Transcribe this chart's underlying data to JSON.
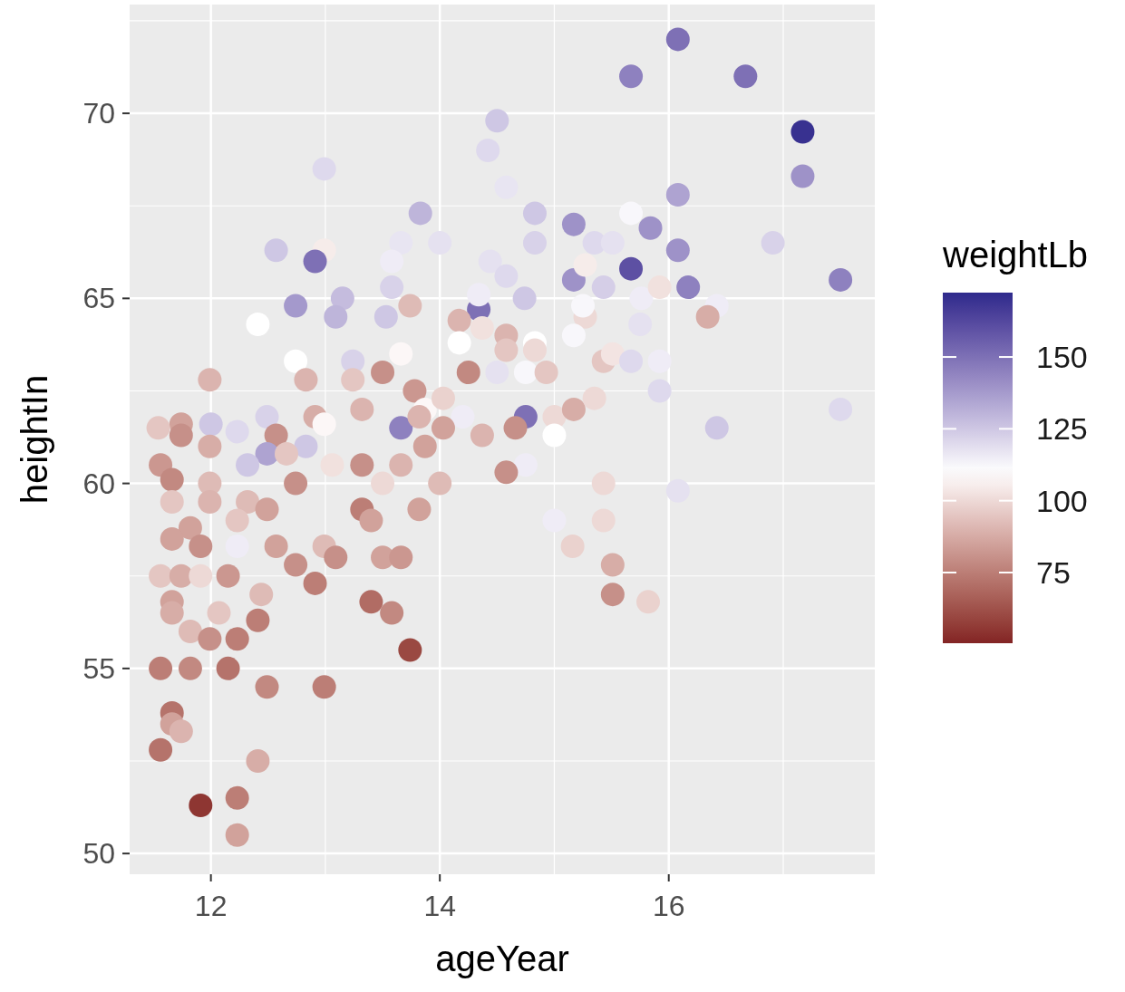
{
  "chart_data": {
    "type": "scatter",
    "xlabel": "ageYear",
    "ylabel": "heightIn",
    "clabel": "weightLb",
    "xlim": [
      11.29,
      17.8
    ],
    "ylim": [
      49.44,
      72.94
    ],
    "xticks": [
      12,
      14,
      16
    ],
    "yticks": [
      50,
      55,
      60,
      65,
      70
    ],
    "clim": [
      50.4,
      172.4
    ],
    "cticks": [
      75,
      100,
      125,
      150
    ],
    "grid": true,
    "marker": "circle",
    "x": [
      16.08,
      15.67,
      16.67,
      17.17,
      17.17,
      14.5,
      14.42,
      12.99,
      14.58,
      16.08,
      13.83,
      14.83,
      15.17,
      15.67,
      15.84,
      16.91,
      14.0,
      13.66,
      12.57,
      12.99,
      12.91,
      13.58,
      16.08,
      15.67,
      14.83,
      15.35,
      15.51,
      14.44,
      14.58,
      15.17,
      15.27,
      16.17,
      17.5,
      14.34,
      14.34,
      13.15,
      12.74,
      13.09,
      13.58,
      13.74,
      14.74,
      15.43,
      15.76,
      15.92,
      16.42,
      16.34,
      15.27,
      15.25,
      12.41,
      13.53,
      14.17,
      14.37,
      14.58,
      14.83,
      15.17,
      15.75,
      14.17,
      12.74,
      13.24,
      13.66,
      14.58,
      14.83,
      15.43,
      15.51,
      15.67,
      15.92,
      11.99,
      12.83,
      13.24,
      13.5,
      14.25,
      14.5,
      14.75,
      14.93,
      15.92,
      13.78,
      13.32,
      13.87,
      14.03,
      14.2,
      14.75,
      15.0,
      15.17,
      15.35,
      17.5,
      11.74,
      12.0,
      12.23,
      12.49,
      12.91,
      12.99,
      13.66,
      13.82,
      14.03,
      14.37,
      14.66,
      15.0,
      16.42,
      11.54,
      11.74,
      12.57,
      12.83,
      12.49,
      11.99,
      12.32,
      12.66,
      13.87,
      14.75,
      14.58,
      13.06,
      13.32,
      13.66,
      11.56,
      11.66,
      11.99,
      12.74,
      13.5,
      14.0,
      15.43,
      16.08,
      11.66,
      11.99,
      12.32,
      12.49,
      13.32,
      13.82,
      15.0,
      15.43,
      13.4,
      11.82,
      12.23,
      11.66,
      11.91,
      12.23,
      12.57,
      12.99,
      15.16,
      13.09,
      13.5,
      13.66,
      12.74,
      15.51,
      11.56,
      11.74,
      11.91,
      12.15,
      12.91,
      12.44,
      11.66,
      13.4,
      15.82,
      15.51,
      12.07,
      11.66,
      13.58,
      12.41,
      11.82,
      11.99,
      12.23,
      13.74,
      11.56,
      11.82,
      12.15,
      12.49,
      12.99,
      11.66,
      11.66,
      11.74,
      11.56,
      12.41,
      11.91,
      12.23,
      12.23
    ],
    "values": [
      72.0,
      71.0,
      71.0,
      69.5,
      68.3,
      69.8,
      69.0,
      68.5,
      68.0,
      67.8,
      67.3,
      67.3,
      67.0,
      67.3,
      66.9,
      66.5,
      66.5,
      66.5,
      66.3,
      66.3,
      66.0,
      66.0,
      66.3,
      65.8,
      66.5,
      66.5,
      66.5,
      66.0,
      65.6,
      65.5,
      65.9,
      65.3,
      65.5,
      64.7,
      65.1,
      65.0,
      64.8,
      64.5,
      65.3,
      64.8,
      65.0,
      65.3,
      65.0,
      65.3,
      64.8,
      64.5,
      64.5,
      64.8,
      64.3,
      64.5,
      64.4,
      64.2,
      64.0,
      63.8,
      64.0,
      64.3,
      63.8,
      63.3,
      63.3,
      63.5,
      63.6,
      63.6,
      63.3,
      63.5,
      63.3,
      63.3,
      62.8,
      62.8,
      62.8,
      63.0,
      63.0,
      63.0,
      63.0,
      63.0,
      62.5,
      62.5,
      62.0,
      62.0,
      62.3,
      61.8,
      61.8,
      61.8,
      62.0,
      62.3,
      62.0,
      61.6,
      61.6,
      61.4,
      61.8,
      61.8,
      61.6,
      61.5,
      61.8,
      61.5,
      61.3,
      61.5,
      61.3,
      61.5,
      61.5,
      61.3,
      61.3,
      61.0,
      60.8,
      61.0,
      60.5,
      60.8,
      61.0,
      60.5,
      60.3,
      60.5,
      60.5,
      60.5,
      60.5,
      60.1,
      60.0,
      60.0,
      60.0,
      60.0,
      60.0,
      59.8,
      59.5,
      59.5,
      59.5,
      59.3,
      59.3,
      59.3,
      59.0,
      59.0,
      59.0,
      58.8,
      59.0,
      58.5,
      58.3,
      58.3,
      58.3,
      58.3,
      58.3,
      58.0,
      58.0,
      58.0,
      57.8,
      57.8,
      57.5,
      57.5,
      57.5,
      57.5,
      57.3,
      57.0,
      56.8,
      56.8,
      56.8,
      57.0,
      56.5,
      56.5,
      56.5,
      56.3,
      56.0,
      55.8,
      55.8,
      55.5,
      55.0,
      55.0,
      55.0,
      54.5,
      54.5,
      53.8,
      53.5,
      53.3,
      52.8,
      52.5,
      51.3,
      51.5,
      50.5
    ],
    "cvalues": [
      150,
      145,
      150,
      170,
      140,
      125,
      120,
      120,
      117,
      135,
      130,
      125,
      140,
      112,
      140,
      122,
      118,
      117,
      125,
      105,
      150,
      115,
      140,
      160,
      122,
      120,
      118,
      118,
      120,
      140,
      105,
      145,
      145,
      150,
      115,
      128,
      138,
      130,
      122,
      92,
      125,
      123,
      115,
      102,
      115,
      88,
      100,
      112,
      110,
      125,
      90,
      102,
      90,
      110,
      112,
      118,
      110,
      110,
      122,
      108,
      95,
      100,
      95,
      103,
      120,
      115,
      90,
      90,
      95,
      80,
      78,
      118,
      112,
      95,
      120,
      82,
      90,
      108,
      98,
      115,
      150,
      100,
      88,
      100,
      120,
      85,
      125,
      120,
      122,
      88,
      108,
      145,
      90,
      85,
      90,
      80,
      110,
      125,
      95,
      80,
      80,
      125,
      135,
      88,
      125,
      95,
      85,
      115,
      80,
      102,
      80,
      90,
      82,
      78,
      92,
      80,
      100,
      92,
      100,
      118,
      95,
      90,
      92,
      85,
      75,
      85,
      115,
      100,
      85,
      85,
      95,
      85,
      80,
      115,
      85,
      92,
      98,
      80,
      85,
      82,
      80,
      88,
      95,
      88,
      100,
      82,
      75,
      92,
      85,
      70,
      98,
      80,
      95,
      88,
      78,
      75,
      92,
      80,
      75,
      60,
      75,
      78,
      72,
      78,
      75,
      72,
      85,
      90,
      72,
      88,
      55,
      75,
      85
    ]
  }
}
